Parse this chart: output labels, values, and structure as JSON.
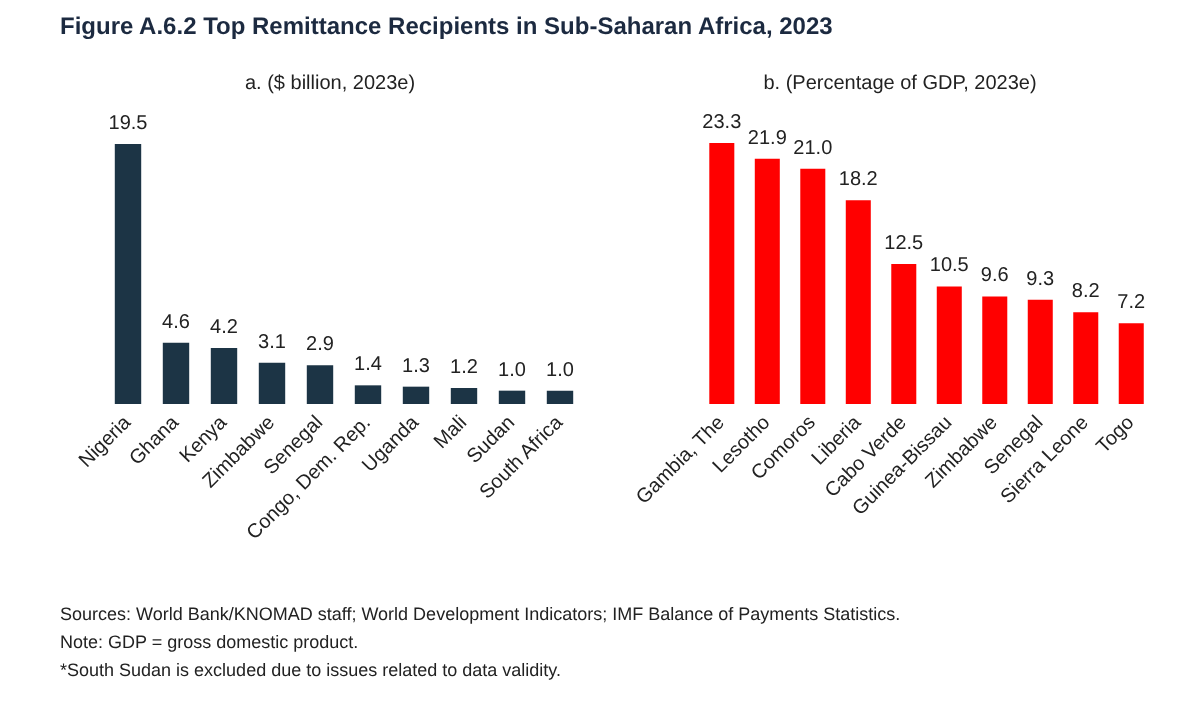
{
  "chart_data": [
    {
      "type": "bar",
      "title": "Figure A.6.2 Top Remittance Recipients in Sub-Saharan Africa, 2023",
      "subtitle": "a. ($ billion, 2023e)",
      "categories": [
        "Nigeria",
        "Ghana",
        "Kenya",
        "Zimbabwe",
        "Senegal",
        "Congo, Dem. Rep.",
        "Uganda",
        "Mali",
        "Sudan",
        "South Africa"
      ],
      "values": [
        19.5,
        4.6,
        4.2,
        3.1,
        2.9,
        1.4,
        1.3,
        1.2,
        1.0,
        1.0
      ],
      "value_labels": [
        "19.5",
        "4.6",
        "4.2",
        "3.1",
        "2.9",
        "1.4",
        "1.3",
        "1.2",
        "1.0",
        "1.0"
      ],
      "color": "#1c3445",
      "annotations": [
        "Sources: World Bank/KNOMAD staff; World Development Indicators; IMF Balance of Payments Statistics.",
        "Note: GDP = gross domestic product.",
        "*South Sudan is excluded due to issues related to data validity."
      ]
    },
    {
      "type": "bar",
      "subtitle": "b. (Percentage of GDP, 2023e)",
      "categories": [
        "Gambia, The",
        "Lesotho",
        "Comoros",
        "Liberia",
        "Cabo Verde",
        "Guinea-Bissau",
        "Zimbabwe",
        "Senegal",
        "Sierra Leone",
        "Togo"
      ],
      "values": [
        23.3,
        21.9,
        21.0,
        18.2,
        12.5,
        10.5,
        9.6,
        9.3,
        8.2,
        7.2
      ],
      "value_labels": [
        "23.3",
        "21.9",
        "21.0",
        "18.2",
        "12.5",
        "10.5",
        "9.6",
        "9.3",
        "8.2",
        "7.2"
      ],
      "color": "#ff0000"
    }
  ]
}
